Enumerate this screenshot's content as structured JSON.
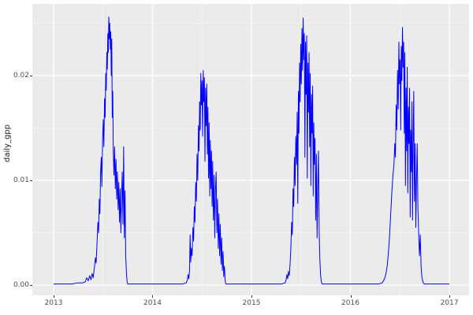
{
  "figure": {
    "kind": "ggplot2-line-plot",
    "title": ""
  },
  "style": {
    "outer_bg": "#FFFFFF",
    "panel_bg": "#EBEBEB",
    "grid_major_color": "#FFFFFF",
    "grid_minor_color": "#F3F3F3",
    "line_color": "#0000FF",
    "tick_mark_color": "#333333",
    "tick_label_color": "#4D4D4D",
    "axis_title_color": "#1A1A1A"
  },
  "chart_data": {
    "type": "line",
    "title": "",
    "xlabel": "",
    "ylabel": "daily_gpp",
    "legend": "none",
    "grid": true,
    "x_ticks": [
      2013,
      2014,
      2015,
      2016,
      2017
    ],
    "x_tick_labels": [
      "2013",
      "2014",
      "2015",
      "2016",
      "2017"
    ],
    "x_minor_ticks": [
      2013.5,
      2014.5,
      2015.5,
      2016.5
    ],
    "y_ticks": [
      0,
      0.01,
      0.02
    ],
    "y_tick_labels": [
      "0.00",
      "0.01",
      "0.02"
    ],
    "y_minor_ticks": [
      0.005,
      0.015,
      0.025
    ],
    "xlim": [
      2012.785,
      2017.199
    ],
    "ylim": [
      -0.00098,
      0.02684
    ],
    "x_data_range": [
      2013,
      2017
    ],
    "y_data_range": [
      0,
      0.0256
    ],
    "series": [
      {
        "name": "daily_gpp",
        "color": "#0000FF",
        "points": [
          [
            2013.0,
            0.0001
          ],
          [
            2013.06,
            0.0001
          ],
          [
            2013.12,
            0.0001
          ],
          [
            2013.18,
            0.0001
          ],
          [
            2013.24,
            0.0002
          ],
          [
            2013.29,
            0.0002
          ],
          [
            2013.32,
            0.0003
          ],
          [
            2013.335,
            0.0007
          ],
          [
            2013.35,
            0.0004
          ],
          [
            2013.365,
            0.0009
          ],
          [
            2013.378,
            0.0005
          ],
          [
            2013.39,
            0.0011
          ],
          [
            2013.4,
            0.0007
          ],
          [
            2013.412,
            0.0016
          ],
          [
            2013.422,
            0.0026
          ],
          [
            2013.43,
            0.0021
          ],
          [
            2013.44,
            0.0042
          ],
          [
            2013.448,
            0.006
          ],
          [
            2013.455,
            0.005
          ],
          [
            2013.462,
            0.0082
          ],
          [
            2013.468,
            0.0068
          ],
          [
            2013.475,
            0.0108
          ],
          [
            2013.482,
            0.0122
          ],
          [
            2013.488,
            0.0094
          ],
          [
            2013.495,
            0.0138
          ],
          [
            2013.502,
            0.0158
          ],
          [
            2013.508,
            0.0132
          ],
          [
            2013.515,
            0.0178
          ],
          [
            2013.521,
            0.016
          ],
          [
            2013.527,
            0.0202
          ],
          [
            2013.532,
            0.0186
          ],
          [
            2013.538,
            0.0222
          ],
          [
            2013.543,
            0.0206
          ],
          [
            2013.548,
            0.024
          ],
          [
            2013.553,
            0.0222
          ],
          [
            2013.558,
            0.0256
          ],
          [
            2013.563,
            0.0235
          ],
          [
            2013.568,
            0.025
          ],
          [
            2013.573,
            0.0225
          ],
          [
            2013.578,
            0.0242
          ],
          [
            2013.583,
            0.02
          ],
          [
            2013.588,
            0.0235
          ],
          [
            2013.593,
            0.016
          ],
          [
            2013.598,
            0.0185
          ],
          [
            2013.603,
            0.0128
          ],
          [
            2013.61,
            0.0105
          ],
          [
            2013.617,
            0.0132
          ],
          [
            2013.624,
            0.0092
          ],
          [
            2013.631,
            0.012
          ],
          [
            2013.638,
            0.0082
          ],
          [
            2013.645,
            0.0108
          ],
          [
            2013.652,
            0.0072
          ],
          [
            2013.659,
            0.0098
          ],
          [
            2013.666,
            0.006
          ],
          [
            2013.673,
            0.0092
          ],
          [
            2013.68,
            0.005
          ],
          [
            2013.687,
            0.0085
          ],
          [
            2013.694,
            0.0108
          ],
          [
            2013.701,
            0.0058
          ],
          [
            2013.708,
            0.0132
          ],
          [
            2013.715,
            0.0045
          ],
          [
            2013.722,
            0.009
          ],
          [
            2013.729,
            0.0028
          ],
          [
            2013.736,
            0.0012
          ],
          [
            2013.743,
            0.0003
          ],
          [
            2013.75,
            0.0001
          ],
          [
            2013.8,
            0.0001
          ],
          [
            2013.87,
            0.0001
          ],
          [
            2013.95,
            0.0001
          ],
          [
            2014.02,
            0.0001
          ],
          [
            2014.1,
            0.0001
          ],
          [
            2014.2,
            0.0001
          ],
          [
            2014.3,
            0.0001
          ],
          [
            2014.34,
            0.0002
          ],
          [
            2014.352,
            0.0005
          ],
          [
            2014.36,
            0.001
          ],
          [
            2014.367,
            0.0006
          ],
          [
            2014.374,
            0.0014
          ],
          [
            2014.38,
            0.0048
          ],
          [
            2014.386,
            0.0022
          ],
          [
            2014.393,
            0.0035
          ],
          [
            2014.4,
            0.0028
          ],
          [
            2014.408,
            0.0055
          ],
          [
            2014.415,
            0.0042
          ],
          [
            2014.422,
            0.0075
          ],
          [
            2014.429,
            0.006
          ],
          [
            2014.436,
            0.0098
          ],
          [
            2014.443,
            0.008
          ],
          [
            2014.45,
            0.0125
          ],
          [
            2014.457,
            0.01
          ],
          [
            2014.464,
            0.0152
          ],
          [
            2014.47,
            0.0128
          ],
          [
            2014.476,
            0.0175
          ],
          [
            2014.482,
            0.0148
          ],
          [
            2014.488,
            0.0202
          ],
          [
            2014.494,
            0.0172
          ],
          [
            2014.5,
            0.0195
          ],
          [
            2014.506,
            0.0142
          ],
          [
            2014.512,
            0.0205
          ],
          [
            2014.518,
            0.0175
          ],
          [
            2014.524,
            0.0198
          ],
          [
            2014.53,
            0.0118
          ],
          [
            2014.536,
            0.0188
          ],
          [
            2014.542,
            0.0152
          ],
          [
            2014.548,
            0.0192
          ],
          [
            2014.554,
            0.0125
          ],
          [
            2014.56,
            0.017
          ],
          [
            2014.566,
            0.0102
          ],
          [
            2014.572,
            0.0155
          ],
          [
            2014.578,
            0.0085
          ],
          [
            2014.584,
            0.0138
          ],
          [
            2014.59,
            0.0092
          ],
          [
            2014.596,
            0.0128
          ],
          [
            2014.602,
            0.0075
          ],
          [
            2014.608,
            0.0118
          ],
          [
            2014.615,
            0.0062
          ],
          [
            2014.622,
            0.0105
          ],
          [
            2014.629,
            0.0045
          ],
          [
            2014.636,
            0.0092
          ],
          [
            2014.643,
            0.0108
          ],
          [
            2014.65,
            0.005
          ],
          [
            2014.657,
            0.0082
          ],
          [
            2014.664,
            0.0035
          ],
          [
            2014.671,
            0.0068
          ],
          [
            2014.678,
            0.0028
          ],
          [
            2014.685,
            0.0058
          ],
          [
            2014.692,
            0.002
          ],
          [
            2014.699,
            0.0045
          ],
          [
            2014.706,
            0.0014
          ],
          [
            2014.713,
            0.0032
          ],
          [
            2014.72,
            0.0008
          ],
          [
            2014.727,
            0.0018
          ],
          [
            2014.734,
            0.0004
          ],
          [
            2014.741,
            0.0001
          ],
          [
            2014.8,
            0.0001
          ],
          [
            2014.9,
            0.0001
          ],
          [
            2015.0,
            0.0001
          ],
          [
            2015.1,
            0.0001
          ],
          [
            2015.2,
            0.0001
          ],
          [
            2015.3,
            0.0001
          ],
          [
            2015.34,
            0.0002
          ],
          [
            2015.35,
            0.0005
          ],
          [
            2015.358,
            0.001
          ],
          [
            2015.366,
            0.0006
          ],
          [
            2015.374,
            0.0013
          ],
          [
            2015.382,
            0.0009
          ],
          [
            2015.39,
            0.002
          ],
          [
            2015.398,
            0.0035
          ],
          [
            2015.406,
            0.006
          ],
          [
            2015.413,
            0.0048
          ],
          [
            2015.42,
            0.0092
          ],
          [
            2015.427,
            0.0075
          ],
          [
            2015.434,
            0.0122
          ],
          [
            2015.441,
            0.0095
          ],
          [
            2015.448,
            0.0142
          ],
          [
            2015.455,
            0.0115
          ],
          [
            2015.462,
            0.0165
          ],
          [
            2015.468,
            0.0078
          ],
          [
            2015.474,
            0.0185
          ],
          [
            2015.48,
            0.0145
          ],
          [
            2015.486,
            0.0212
          ],
          [
            2015.492,
            0.0175
          ],
          [
            2015.498,
            0.023
          ],
          [
            2015.504,
            0.0192
          ],
          [
            2015.51,
            0.0245
          ],
          [
            2015.516,
            0.0205
          ],
          [
            2015.522,
            0.0255
          ],
          [
            2015.528,
            0.0215
          ],
          [
            2015.534,
            0.024
          ],
          [
            2015.54,
            0.0122
          ],
          [
            2015.546,
            0.0232
          ],
          [
            2015.552,
            0.0182
          ],
          [
            2015.558,
            0.0238
          ],
          [
            2015.564,
            0.0102
          ],
          [
            2015.57,
            0.0212
          ],
          [
            2015.576,
            0.0165
          ],
          [
            2015.582,
            0.0222
          ],
          [
            2015.588,
            0.0132
          ],
          [
            2015.594,
            0.0202
          ],
          [
            2015.6,
            0.0095
          ],
          [
            2015.606,
            0.0182
          ],
          [
            2015.612,
            0.0145
          ],
          [
            2015.618,
            0.019
          ],
          [
            2015.624,
            0.0085
          ],
          [
            2015.63,
            0.0155
          ],
          [
            2015.636,
            0.0115
          ],
          [
            2015.642,
            0.014
          ],
          [
            2015.649,
            0.0062
          ],
          [
            2015.656,
            0.0125
          ],
          [
            2015.663,
            0.0045
          ],
          [
            2015.67,
            0.0092
          ],
          [
            2015.677,
            0.0128
          ],
          [
            2015.684,
            0.0052
          ],
          [
            2015.691,
            0.0025
          ],
          [
            2015.698,
            0.001
          ],
          [
            2015.706,
            0.0003
          ],
          [
            2015.715,
            0.0001
          ],
          [
            2015.78,
            0.0001
          ],
          [
            2015.88,
            0.0001
          ],
          [
            2015.98,
            0.0001
          ],
          [
            2016.08,
            0.0001
          ],
          [
            2016.18,
            0.0001
          ],
          [
            2016.28,
            0.0001
          ],
          [
            2016.32,
            0.0002
          ],
          [
            2016.34,
            0.0005
          ],
          [
            2016.358,
            0.001
          ],
          [
            2016.374,
            0.002
          ],
          [
            2016.39,
            0.0038
          ],
          [
            2016.404,
            0.0062
          ],
          [
            2016.418,
            0.0088
          ],
          [
            2016.43,
            0.0105
          ],
          [
            2016.44,
            0.0115
          ],
          [
            2016.448,
            0.0135
          ],
          [
            2016.455,
            0.0122
          ],
          [
            2016.462,
            0.0172
          ],
          [
            2016.469,
            0.0148
          ],
          [
            2016.476,
            0.0205
          ],
          [
            2016.483,
            0.0168
          ],
          [
            2016.49,
            0.0232
          ],
          [
            2016.496,
            0.0192
          ],
          [
            2016.502,
            0.0215
          ],
          [
            2016.508,
            0.0148
          ],
          [
            2016.514,
            0.0228
          ],
          [
            2016.52,
            0.0195
          ],
          [
            2016.526,
            0.0246
          ],
          [
            2016.532,
            0.0208
          ],
          [
            2016.538,
            0.0232
          ],
          [
            2016.544,
            0.0145
          ],
          [
            2016.55,
            0.0222
          ],
          [
            2016.556,
            0.0095
          ],
          [
            2016.562,
            0.0188
          ],
          [
            2016.568,
            0.0128
          ],
          [
            2016.574,
            0.0208
          ],
          [
            2016.58,
            0.0088
          ],
          [
            2016.586,
            0.017
          ],
          [
            2016.592,
            0.0135
          ],
          [
            2016.598,
            0.0188
          ],
          [
            2016.604,
            0.0065
          ],
          [
            2016.61,
            0.0148
          ],
          [
            2016.616,
            0.0108
          ],
          [
            2016.622,
            0.0175
          ],
          [
            2016.628,
            0.0062
          ],
          [
            2016.634,
            0.0138
          ],
          [
            2016.64,
            0.0185
          ],
          [
            2016.647,
            0.008
          ],
          [
            2016.654,
            0.0135
          ],
          [
            2016.661,
            0.0055
          ],
          [
            2016.668,
            0.01
          ],
          [
            2016.675,
            0.0135
          ],
          [
            2016.682,
            0.0075
          ],
          [
            2016.69,
            0.0048
          ],
          [
            2016.698,
            0.0028
          ],
          [
            2016.706,
            0.0048
          ],
          [
            2016.714,
            0.0018
          ],
          [
            2016.722,
            0.0008
          ],
          [
            2016.732,
            0.0003
          ],
          [
            2016.745,
            0.0001
          ],
          [
            2016.8,
            0.0001
          ],
          [
            2016.87,
            0.0001
          ],
          [
            2016.94,
            0.0001
          ],
          [
            2017.0,
            0.0001
          ]
        ]
      }
    ]
  }
}
